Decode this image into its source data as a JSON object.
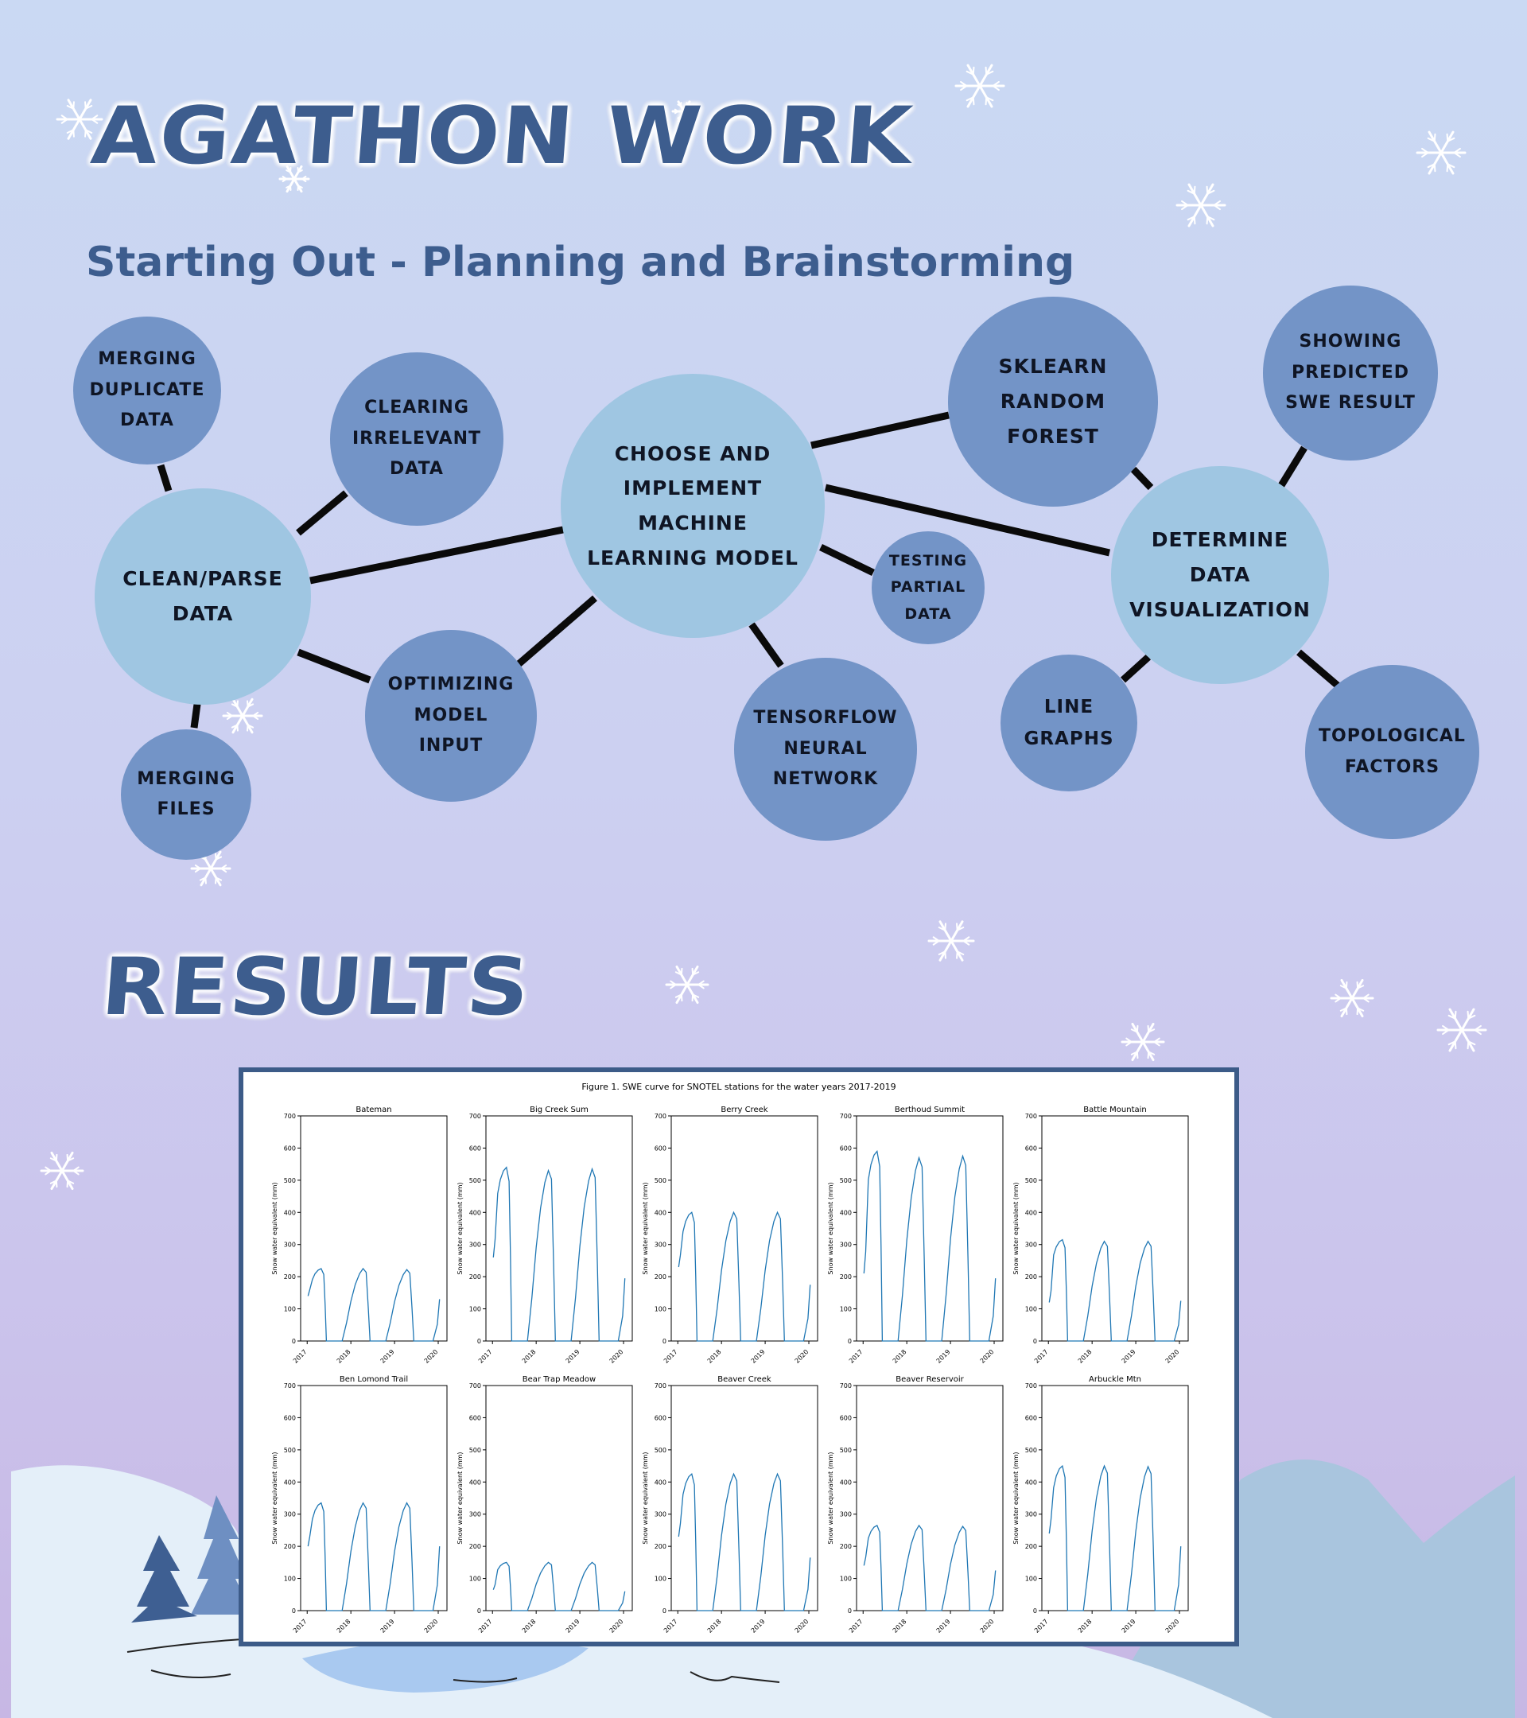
{
  "title": "AGATHON WORK",
  "subtitle": "Starting Out - Planning and Brainstorming",
  "results_title": "RESULTS",
  "nodes": {
    "choose": "CHOOSE AND\nIMPLEMENT\nMACHINE\nLEARNING MODEL",
    "clean": "CLEAN/PARSE\nDATA",
    "merge_dup": "MERGING\nDUPLICATE\nDATA",
    "clearing": "CLEARING\nIRRELEVANT\nDATA",
    "merge_files": "MERGING\nFILES",
    "optimizing": "OPTIMIZING\nMODEL\nINPUT",
    "tensorflow": "TENSORFLOW\nNEURAL\nNETWORK",
    "testing": "TESTING\nPARTIAL\nDATA",
    "sklearn": "SKLEARN\nRANDOM\nFOREST",
    "showing": "SHOWING\nPREDICTED\nSWE RESULT",
    "determine": "DETERMINE\nDATA\nVISUALIZATION",
    "line_graphs": "LINE\nGRAPHS",
    "topological": "TOPOLOGICAL\nFACTORS"
  },
  "colors": {
    "title": "#3d5d8e",
    "node_light": "#9fc6e2",
    "node_dark": "#7394c7",
    "connector": "#0a0a0a",
    "swe_line": "#1f77b4",
    "frame": "#3c5b88"
  },
  "chart_data": {
    "type": "line",
    "title": "Figure 1. SWE curve for SNOTEL stations for the water years 2017-2019",
    "ylabel": "Snow water equivalent (mm)",
    "ylim": [
      0,
      700
    ],
    "yticks": [
      "0",
      "100",
      "200",
      "300",
      "400",
      "500",
      "600",
      "700"
    ],
    "xticks": [
      "2017",
      "2018",
      "2019",
      "2020"
    ],
    "xlim": [
      2016.85,
      2020.2
    ],
    "grid": false,
    "series": [
      {
        "name": "Bateman",
        "start": 140,
        "peaks": [
          225,
          225,
          222
        ],
        "end": 130
      },
      {
        "name": "Big Creek Sum",
        "start": 260,
        "peaks": [
          540,
          530,
          535
        ],
        "end": 195
      },
      {
        "name": "Berry Creek",
        "start": 230,
        "peaks": [
          400,
          400,
          400
        ],
        "end": 175
      },
      {
        "name": "Berthoud Summit",
        "start": 210,
        "peaks": [
          590,
          570,
          575
        ],
        "end": 195
      },
      {
        "name": "Battle Mountain",
        "start": 120,
        "peaks": [
          315,
          310,
          310
        ],
        "end": 125
      },
      {
        "name": "Ben Lomond Trail",
        "start": 200,
        "peaks": [
          335,
          335,
          335
        ],
        "end": 200
      },
      {
        "name": "Bear Trap Meadow",
        "start": 65,
        "peaks": [
          150,
          150,
          150
        ],
        "end": 60
      },
      {
        "name": "Beaver Creek",
        "start": 230,
        "peaks": [
          425,
          425,
          425
        ],
        "end": 165
      },
      {
        "name": "Beaver Reservoir",
        "start": 140,
        "peaks": [
          265,
          265,
          262
        ],
        "end": 125
      },
      {
        "name": "Arbuckle Mtn",
        "start": 240,
        "peaks": [
          450,
          450,
          448
        ],
        "end": 200
      }
    ]
  }
}
